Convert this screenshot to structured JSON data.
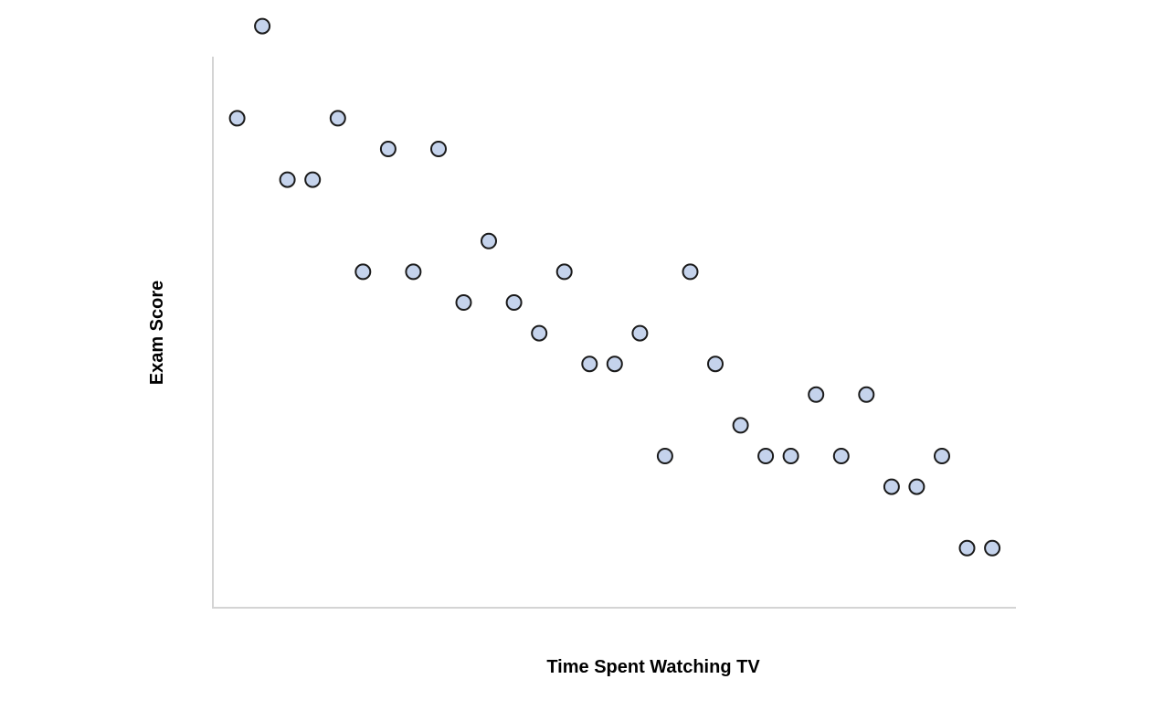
{
  "chart_data": {
    "type": "scatter",
    "title": "",
    "xlabel": "Time Spent Watching TV",
    "ylabel": "Exam Score",
    "xlim": [
      0,
      32
    ],
    "ylim": [
      0,
      18
    ],
    "grid": false,
    "legend": "none",
    "colors": {
      "marker_fill": "#c5d3ec",
      "marker_stroke": "#1a1a1a",
      "axis": "#d4d4d4"
    },
    "series": [
      {
        "x": [
          1,
          2,
          3,
          4,
          5,
          6,
          7,
          8,
          9,
          10,
          11,
          12,
          13,
          14,
          15,
          16,
          17,
          18,
          19,
          20,
          21,
          22,
          23,
          24,
          25,
          26,
          27,
          28,
          29,
          30,
          31
        ],
        "y": [
          14,
          17,
          12,
          12,
          14,
          9,
          13,
          9,
          13,
          8,
          10,
          8,
          7,
          9,
          6,
          6,
          7,
          3,
          9,
          6,
          4,
          3,
          3,
          5,
          3,
          5,
          2,
          2,
          3,
          0,
          0
        ]
      }
    ]
  }
}
